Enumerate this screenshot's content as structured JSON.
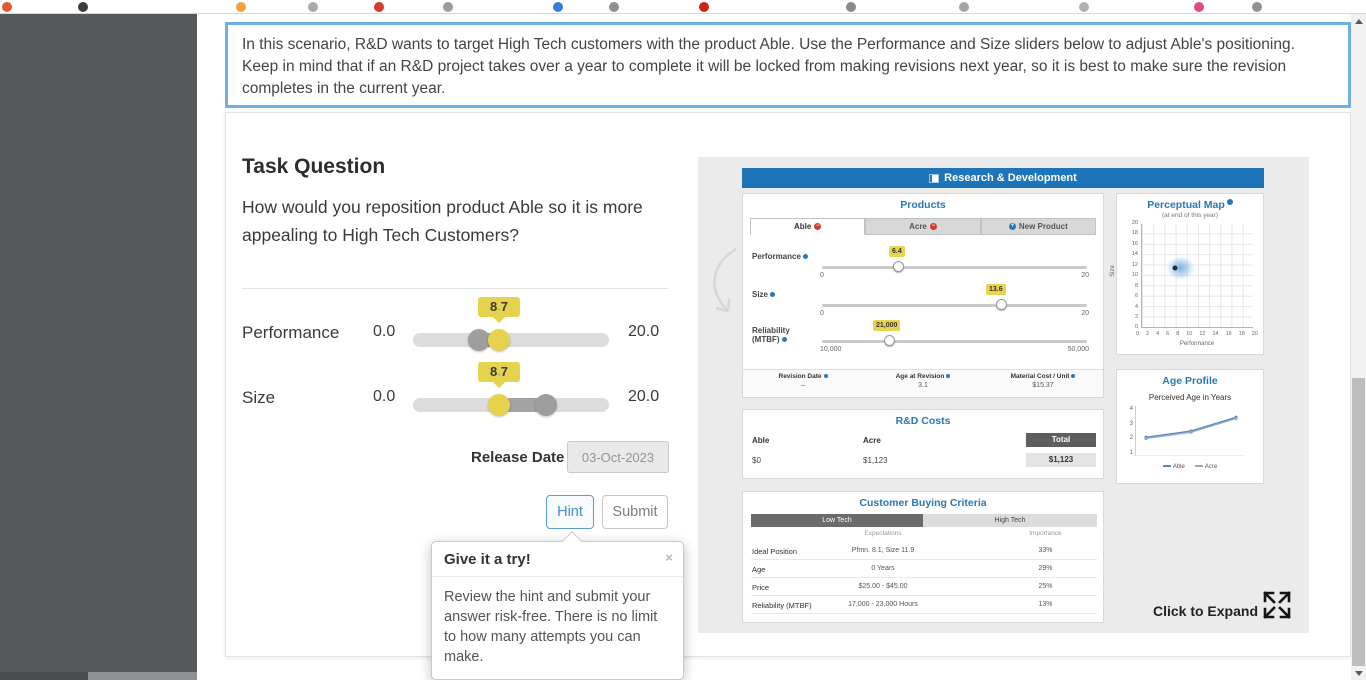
{
  "browser": {
    "favicon_colors": [
      "#e05a2b",
      "#3c3c3e",
      "#f2a13c",
      "#a9a9a9",
      "#d43c2c",
      "#9b9b9b",
      "#3b7bd8",
      "#8f8f8f",
      "#cc2418",
      "#8a8a8a",
      "#a5a5a5",
      "#b0b0b0",
      "#e04a7f",
      "#909090"
    ]
  },
  "scenario": {
    "text": "In this scenario, R&D wants to target High Tech customers with the product Able. Use the Performance and Size sliders below to adjust Able's positioning. Keep in mind that if an R&D project takes over a year to complete it will be locked from making revisions next year, so it is best to make sure the revision completes in the current year."
  },
  "task": {
    "title": "Task Question",
    "question": "How would you reposition product Able so it is more appealing to High Tech Customers?",
    "sliders": [
      {
        "label": "Performance",
        "min": "0.0",
        "max": "20.0",
        "value": "8.7"
      },
      {
        "label": "Size",
        "min": "0.0",
        "max": "20.0",
        "value": "8.7"
      }
    ],
    "release_date_label": "Release Date",
    "release_date_value": "03-Oct-2023",
    "hint_label": "Hint",
    "submit_label": "Submit"
  },
  "popover": {
    "title": "Give it a try!",
    "close": "×",
    "body": "Review the hint and submit your answer risk-free. There is no limit to how many attempts you can make."
  },
  "preview": {
    "header": "Research & Development",
    "products": {
      "title": "Products",
      "tabs": [
        {
          "label": "Able"
        },
        {
          "label": "Acre"
        },
        {
          "label": "New Product"
        }
      ],
      "sliders": [
        {
          "label": "Performance",
          "value": "6.4",
          "min": "0",
          "max": "20"
        },
        {
          "label": "Size",
          "value": "13.6",
          "min": "0",
          "max": "20"
        },
        {
          "label": "Reliability (MTBF)",
          "value": "21,000",
          "min": "10,000",
          "max": "50,000"
        }
      ],
      "stats": [
        {
          "label": "Revision Date",
          "value": "–"
        },
        {
          "label": "Age at Revision",
          "value": "3.1"
        },
        {
          "label": "Material Cost / Unit",
          "value": "$15.37"
        }
      ]
    },
    "rnd_costs": {
      "title": "R&D Costs",
      "columns": [
        "Able",
        "Acre",
        "Total"
      ],
      "values": [
        "$0",
        "$1,123",
        "$1,123"
      ]
    },
    "buying_criteria": {
      "title": "Customer Buying Criteria",
      "segments": [
        "Low Tech",
        "High Tech"
      ],
      "subheaders": [
        "Expectations",
        "Importance"
      ],
      "rows": [
        {
          "label": "Ideal Position",
          "expectation": "Pfmn. 8.1, Size 11.9",
          "importance": "33%"
        },
        {
          "label": "Age",
          "expectation": "0 Years",
          "importance": "29%"
        },
        {
          "label": "Price",
          "expectation": "$25.00 - $45.00",
          "importance": "25%"
        },
        {
          "label": "Reliability (MTBF)",
          "expectation": "17,000 - 23,000 Hours",
          "importance": "13%"
        }
      ]
    },
    "perceptual_map": {
      "title": "Perceptual Map",
      "subtitle": "(at end of this year)",
      "xlabel": "Performance",
      "ylabel": "Size",
      "ticks": [
        0,
        2,
        4,
        6,
        8,
        10,
        12,
        14,
        16,
        18,
        20
      ],
      "points": [
        {
          "x": 6,
          "y": 11.5
        }
      ]
    },
    "age_profile": {
      "title": "Age Profile",
      "subtitle": "Perceived Age in Years",
      "yticks": [
        4,
        3,
        2,
        1
      ],
      "series": [
        {
          "name": "Able",
          "color": "#5b84b8",
          "values": [
            1.5,
            2.0,
            3.1
          ]
        },
        {
          "name": "Acre",
          "color": "#8fa8c8",
          "values": [
            1.4,
            1.9,
            3.0
          ]
        }
      ]
    },
    "expand_label": "Click to Expand"
  }
}
